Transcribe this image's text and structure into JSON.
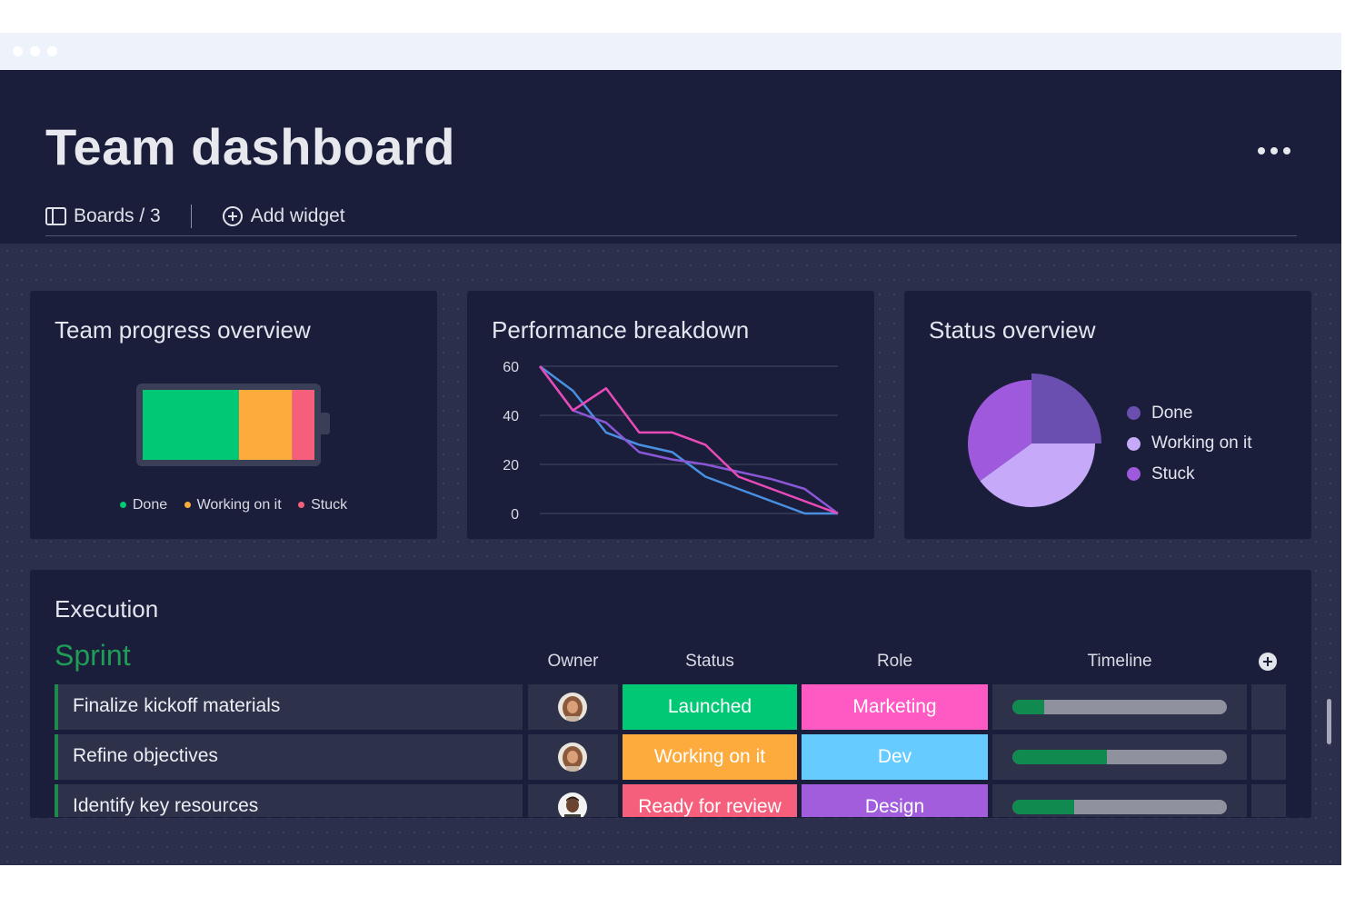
{
  "header": {
    "title": "Team dashboard",
    "boards_label": "Boards / 3",
    "add_widget_label": "Add widget"
  },
  "widgets": {
    "team_progress": {
      "title": "Team progress overview",
      "segments": [
        {
          "label": "Done",
          "fraction": 0.56,
          "color": "#00c875"
        },
        {
          "label": "Working on it",
          "fraction": 0.31,
          "color": "#fdab3d"
        },
        {
          "label": "Stuck",
          "fraction": 0.13,
          "color": "#f65f7c"
        }
      ]
    },
    "performance": {
      "title": "Performance breakdown"
    },
    "status_overview": {
      "title": "Status overview",
      "legend": [
        {
          "label": "Done",
          "color": "#6a4fb0"
        },
        {
          "label": "Working on it",
          "color": "#c6a9f8"
        },
        {
          "label": "Stuck",
          "color": "#9e59dc"
        }
      ]
    }
  },
  "chart_data": {
    "type": "line",
    "title": "Performance breakdown",
    "x": [
      0,
      1,
      2,
      3,
      4,
      5,
      6,
      7,
      8,
      9
    ],
    "ylim": [
      0,
      60
    ],
    "yticks": [
      0,
      20,
      40,
      60
    ],
    "grid": true,
    "series": [
      {
        "color": "#4a90e2",
        "values": [
          60,
          50,
          33,
          28,
          25,
          15,
          10,
          5,
          0,
          0
        ]
      },
      {
        "color": "#8a58d6",
        "values": [
          60,
          42,
          37,
          25,
          22,
          20,
          17,
          14,
          10,
          0
        ]
      },
      {
        "color": "#e84bb8",
        "values": [
          60,
          42,
          51,
          33,
          33,
          28,
          15,
          10,
          5,
          0
        ]
      }
    ]
  },
  "pie_data": {
    "type": "pie",
    "slices": [
      {
        "label": "Done",
        "value": 25,
        "color": "#6a4fb0"
      },
      {
        "label": "Working on it",
        "value": 40,
        "color": "#c6a9f8"
      },
      {
        "label": "Stuck",
        "value": 35,
        "color": "#9e59dc"
      }
    ]
  },
  "execution": {
    "title": "Execution",
    "group_title": "Sprint",
    "columns": {
      "owner": "Owner",
      "status": "Status",
      "role": "Role",
      "timeline": "Timeline"
    },
    "rows": [
      {
        "name": "Finalize kickoff materials",
        "avatar": "avatar-woman",
        "status": "Launched",
        "status_color": "#00c875",
        "role": "Marketing",
        "role_color": "#ff5ac4",
        "timeline_progress": 0.15
      },
      {
        "name": "Refine objectives",
        "avatar": "avatar-woman",
        "status": "Working on it",
        "status_color": "#fdab3d",
        "role": "Dev",
        "role_color": "#66ccff",
        "timeline_progress": 0.44
      },
      {
        "name": "Identify key resources",
        "avatar": "avatar-man",
        "status": "Ready for review",
        "status_color": "#f65f7c",
        "role": "Design",
        "role_color": "#a25ddc",
        "timeline_progress": 0.29
      }
    ]
  }
}
